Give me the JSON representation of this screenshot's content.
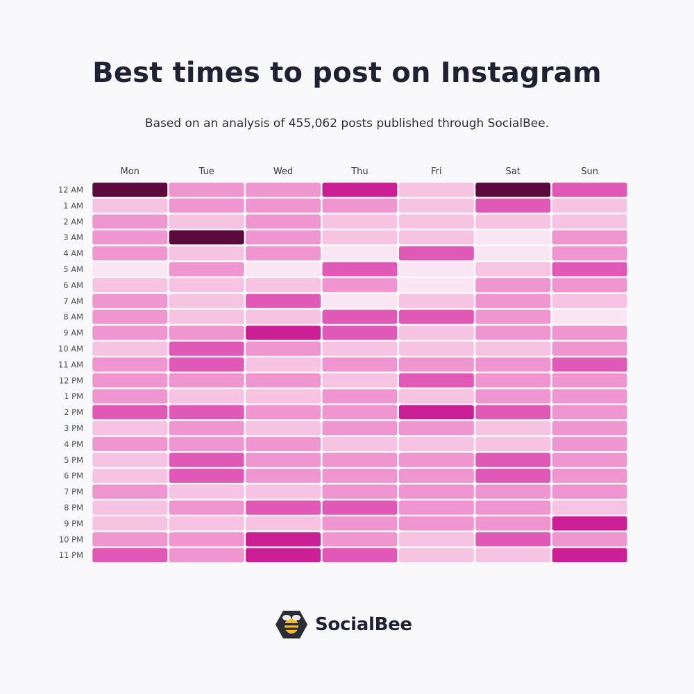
{
  "title": "Best times to post on Instagram",
  "subtitle": "Based on an analysis of 455,062 posts published through SocialBee.",
  "brand": {
    "name": "SocialBee",
    "icon": "bee-hexagon-icon"
  },
  "colors": {
    "level_0": "#fae6f2",
    "level_1": "#f6c4e2",
    "level_2": "#ef96d1",
    "level_3": "#e059b7",
    "level_4": "#cb1f96",
    "level_5": "#5c0a3e",
    "background": "#f9f9fb",
    "text": "#1f2233"
  },
  "chart_data": {
    "type": "heatmap",
    "title": "Best times to post on Instagram",
    "x_categories": [
      "Mon",
      "Tue",
      "Wed",
      "Thu",
      "Fri",
      "Sat",
      "Sun"
    ],
    "y_categories": [
      "12 AM",
      "1 AM",
      "2 AM",
      "3 AM",
      "4 AM",
      "5 AM",
      "6 AM",
      "7 AM",
      "8 AM",
      "9 AM",
      "10 AM",
      "11 AM",
      "12 PM",
      "1 PM",
      "2 PM",
      "3 PM",
      "4 PM",
      "5 PM",
      "6 PM",
      "7 PM",
      "8 PM",
      "9 PM",
      "10 PM",
      "11 PM"
    ],
    "value_scale": "relative engagement intensity, 0 (lightest) to 5 (darkest)",
    "values": [
      [
        5,
        2,
        2,
        4,
        1,
        5,
        3
      ],
      [
        1,
        2,
        2,
        2,
        1,
        3,
        1
      ],
      [
        2,
        1,
        2,
        1,
        1,
        1,
        1
      ],
      [
        2,
        5,
        2,
        1,
        1,
        0,
        2
      ],
      [
        2,
        1,
        2,
        0,
        3,
        0,
        2
      ],
      [
        0,
        2,
        0,
        3,
        0,
        1,
        3
      ],
      [
        1,
        1,
        1,
        2,
        0,
        2,
        2
      ],
      [
        2,
        1,
        3,
        0,
        1,
        2,
        1
      ],
      [
        2,
        1,
        1,
        3,
        3,
        2,
        0
      ],
      [
        2,
        2,
        4,
        3,
        1,
        2,
        2
      ],
      [
        1,
        3,
        2,
        1,
        1,
        1,
        2
      ],
      [
        2,
        3,
        1,
        2,
        2,
        2,
        3
      ],
      [
        2,
        2,
        2,
        1,
        3,
        2,
        2
      ],
      [
        2,
        1,
        1,
        2,
        1,
        2,
        2
      ],
      [
        3,
        3,
        2,
        2,
        4,
        3,
        2
      ],
      [
        1,
        2,
        1,
        2,
        2,
        1,
        2
      ],
      [
        2,
        2,
        2,
        1,
        1,
        1,
        2
      ],
      [
        1,
        3,
        2,
        2,
        2,
        3,
        2
      ],
      [
        1,
        3,
        2,
        2,
        2,
        3,
        2
      ],
      [
        2,
        1,
        1,
        2,
        2,
        2,
        2
      ],
      [
        1,
        2,
        3,
        3,
        2,
        2,
        1
      ],
      [
        1,
        1,
        1,
        2,
        2,
        2,
        4
      ],
      [
        2,
        2,
        4,
        2,
        1,
        3,
        2
      ],
      [
        3,
        2,
        4,
        3,
        1,
        1,
        4
      ]
    ],
    "grid": false,
    "legend": "none"
  }
}
